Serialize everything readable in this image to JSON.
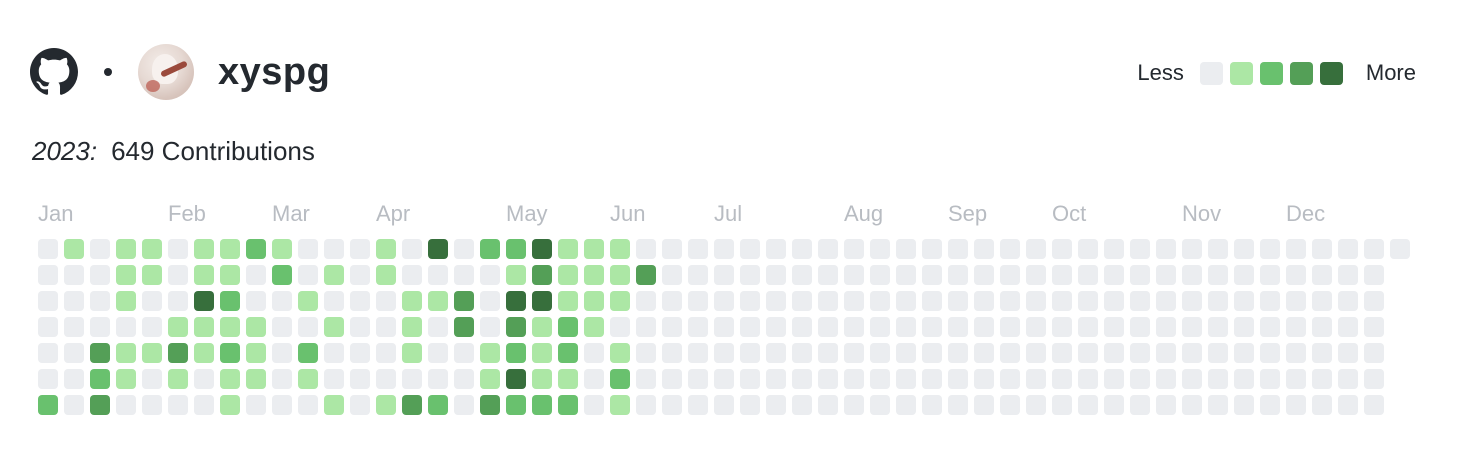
{
  "profile": {
    "username": "xyspg",
    "github_icon": "github-logo-icon",
    "avatar_icon": "avatar-image"
  },
  "legend": {
    "less": "Less",
    "more": "More",
    "colors": [
      "#ebedf0",
      "#ace7a5",
      "#69c16e",
      "#549f57",
      "#376f3c"
    ]
  },
  "summary": {
    "year": "2023:",
    "contributions": "649 Contributions"
  },
  "months": [
    "Jan",
    "Feb",
    "Mar",
    "Apr",
    "May",
    "Jun",
    "Jul",
    "Aug",
    "Sep",
    "Oct",
    "Nov",
    "Dec"
  ],
  "month_start_weeks": [
    0,
    5,
    9,
    13,
    18,
    22,
    26,
    31,
    35,
    39,
    44,
    48
  ],
  "contributions": {
    "first_weekday": 0,
    "days_in_year": 365,
    "levels_by_week": [
      [
        0,
        0,
        0,
        0,
        0,
        0,
        2
      ],
      [
        1,
        0,
        0,
        0,
        0,
        0,
        0
      ],
      [
        0,
        0,
        0,
        0,
        3,
        2,
        3
      ],
      [
        1,
        1,
        1,
        0,
        1,
        1,
        0
      ],
      [
        1,
        1,
        0,
        0,
        1,
        0,
        0
      ],
      [
        0,
        0,
        0,
        1,
        3,
        1,
        0
      ],
      [
        1,
        1,
        4,
        1,
        1,
        0,
        0
      ],
      [
        1,
        1,
        2,
        1,
        2,
        1,
        1
      ],
      [
        2,
        0,
        0,
        1,
        1,
        1,
        0
      ],
      [
        1,
        2,
        0,
        0,
        0,
        0,
        0
      ],
      [
        0,
        0,
        1,
        0,
        2,
        1,
        0
      ],
      [
        0,
        1,
        0,
        1,
        0,
        0,
        1
      ],
      [
        0,
        0,
        0,
        0,
        0,
        0,
        0
      ],
      [
        1,
        1,
        0,
        0,
        0,
        0,
        1
      ],
      [
        0,
        0,
        1,
        1,
        1,
        0,
        3
      ],
      [
        4,
        0,
        1,
        0,
        0,
        0,
        2
      ],
      [
        0,
        0,
        3,
        3,
        0,
        0,
        0
      ],
      [
        2,
        0,
        0,
        0,
        1,
        1,
        3
      ],
      [
        2,
        1,
        4,
        3,
        2,
        4,
        2
      ],
      [
        4,
        3,
        4,
        1,
        1,
        1,
        2
      ],
      [
        1,
        1,
        1,
        2,
        2,
        1,
        2
      ],
      [
        1,
        1,
        1,
        1,
        0,
        0,
        0
      ],
      [
        1,
        1,
        1,
        0,
        1,
        2,
        1
      ],
      [
        0,
        3,
        0,
        0,
        0,
        0,
        0
      ]
    ]
  }
}
